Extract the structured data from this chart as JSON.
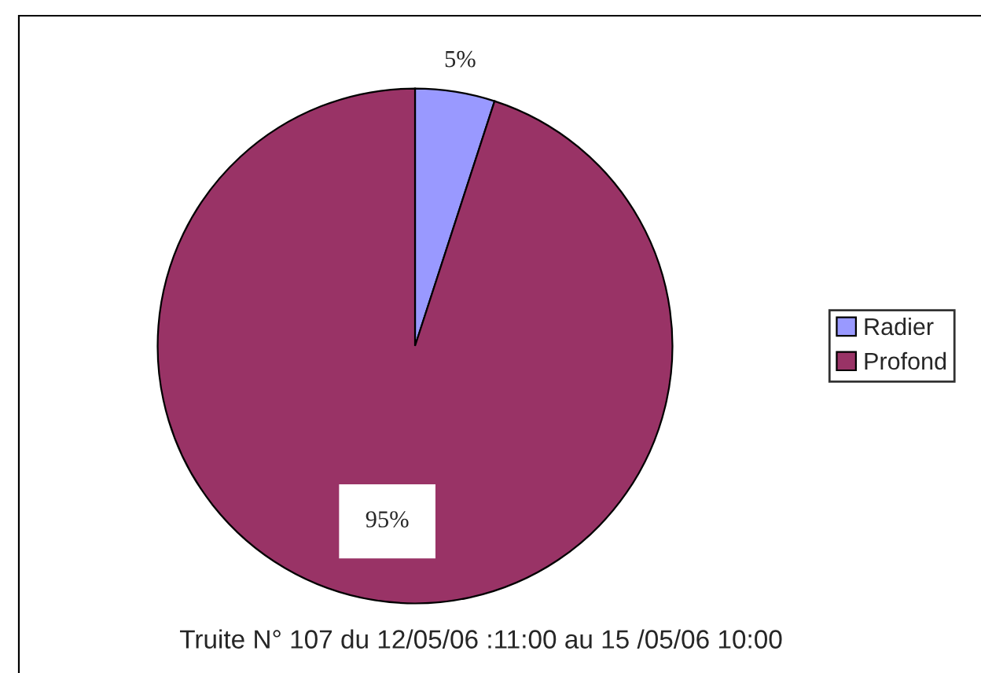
{
  "chart_data": {
    "type": "pie",
    "categories": [
      "Radier",
      "Profond"
    ],
    "values": [
      5,
      95
    ],
    "colors": [
      "#9999ff",
      "#993366"
    ],
    "value_labels": [
      "5%",
      "95%"
    ],
    "legend": "right",
    "title": "Truite N° 107 du 12/05/06 :11:00 au 15 /05/06 10:00"
  }
}
